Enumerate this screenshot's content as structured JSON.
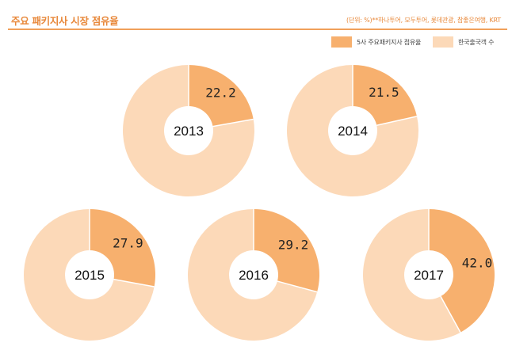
{
  "header": {
    "title": "주요 패키지사 시장 점유율",
    "unit_note": "(단위: %)**하나투어, 모두투어, 롯데관광, 참좋은여행, KRT"
  },
  "colors": {
    "accent": "#e8883a",
    "share": "#f7b06e",
    "remainder": "#fcd9b8"
  },
  "legend": [
    {
      "label": "5사 주요패키지사 점유율"
    },
    {
      "label": "한국출국객 수"
    }
  ],
  "chart_data": {
    "type": "pie",
    "series_names": [
      "5사 주요패키지사 점유율",
      "한국출국객 수"
    ],
    "charts": [
      {
        "year": "2013",
        "value": 22.2,
        "value_label": "22.2"
      },
      {
        "year": "2014",
        "value": 21.5,
        "value_label": "21.5"
      },
      {
        "year": "2015",
        "value": 27.9,
        "value_label": "27.9"
      },
      {
        "year": "2016",
        "value": 29.2,
        "value_label": "29.2"
      },
      {
        "year": "2017",
        "value": 42.0,
        "value_label": "42.0"
      }
    ]
  }
}
